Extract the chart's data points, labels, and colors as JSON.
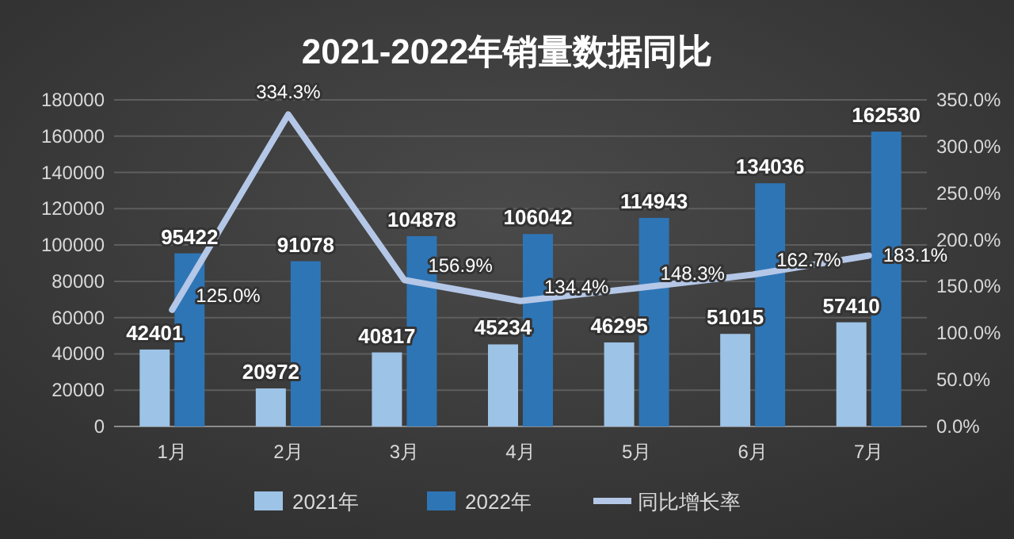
{
  "chart_data": {
    "type": "bar",
    "title": "2021-2022年销量数据同比",
    "categories": [
      "1月",
      "2月",
      "3月",
      "4月",
      "5月",
      "6月",
      "7月"
    ],
    "series": [
      {
        "name": "2021年",
        "color": "#9dc3e6",
        "values": [
          42401,
          20972,
          40817,
          45234,
          46295,
          51015,
          57410
        ],
        "value_labels": [
          "42401",
          "20972",
          "40817",
          "45234",
          "46295",
          "51015",
          "57410"
        ]
      },
      {
        "name": "2022年",
        "color": "#2e75b6",
        "values": [
          95422,
          91078,
          104878,
          106042,
          114943,
          134036,
          162530
        ],
        "value_labels": [
          "95422",
          "91078",
          "104878",
          "106042",
          "114943",
          "134036",
          "162530"
        ]
      },
      {
        "name": "同比增长率",
        "type": "line",
        "axis": "y2",
        "color": "#b4c7e7",
        "values": [
          125.0,
          334.3,
          156.9,
          134.4,
          148.3,
          162.7,
          183.1
        ],
        "value_labels": [
          "125.0%",
          "334.3%",
          "156.9%",
          "134.4%",
          "148.3%",
          "162.7%",
          "183.1%"
        ]
      }
    ],
    "ylim": [
      0,
      180000
    ],
    "yticks": [
      0,
      20000,
      40000,
      60000,
      80000,
      100000,
      120000,
      140000,
      160000,
      180000
    ],
    "y2lim": [
      0,
      350
    ],
    "y2ticks": [
      {
        "value": 0,
        "label": "0.0%"
      },
      {
        "value": 50,
        "label": "50.0%"
      },
      {
        "value": 100,
        "label": "100.0%"
      },
      {
        "value": 150,
        "label": "150.0%"
      },
      {
        "value": 200,
        "label": "200.0%"
      },
      {
        "value": 250,
        "label": "250.0%"
      },
      {
        "value": 300,
        "label": "300.0%"
      },
      {
        "value": 350,
        "label": "350.0%"
      }
    ],
    "grid": "y",
    "legend": "bottom"
  }
}
